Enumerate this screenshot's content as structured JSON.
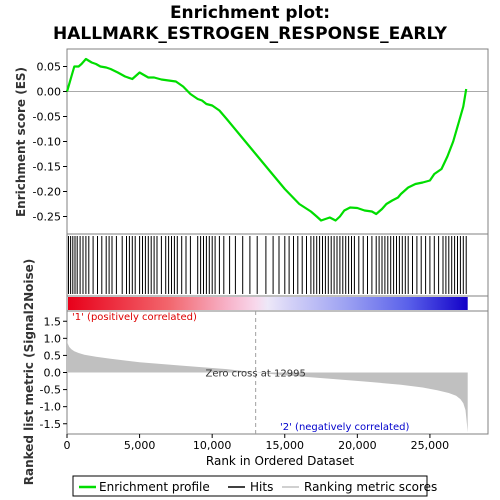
{
  "chart_data": {
    "type": "line",
    "title_line1": "Enrichment plot:",
    "title_line2": "HALLMARK_ESTROGEN_RESPONSE_EARLY",
    "xlabel": "Rank in Ordered Dataset",
    "ylabel_top": "Enrichment score (ES)",
    "ylabel_bottom": "Ranked list metric (Signal2Noise)",
    "xlim": [
      0,
      29000
    ],
    "x_ticks": [
      0,
      5000,
      10000,
      15000,
      20000,
      25000
    ],
    "x_tick_labels": [
      "0",
      "5,000",
      "10,000",
      "15,000",
      "20,000",
      "25,000"
    ],
    "es_ylim": [
      -0.285,
      0.085
    ],
    "es_ticks": [
      0.05,
      0.0,
      -0.05,
      -0.1,
      -0.15,
      -0.2,
      -0.25
    ],
    "es_tick_labels": [
      "0.05",
      "0.00",
      "-0.05",
      "-0.10",
      "-0.15",
      "-0.20",
      "-0.25"
    ],
    "metric_ylim": [
      -1.8,
      1.8
    ],
    "metric_ticks": [
      1.5,
      1.0,
      0.5,
      0.0,
      -0.5,
      -1.0,
      -1.5
    ],
    "metric_tick_labels": [
      "1.5",
      "1.0",
      "0.5",
      "0.0",
      "-0.5",
      "-1.0",
      "-1.5"
    ],
    "n_genes": 27600,
    "zero_cross": 12995,
    "zero_cross_label": "Zero cross at 12995",
    "pos_label": "'1' (positively correlated)",
    "neg_label": "'2' (negatively correlated)",
    "enrichment_profile": {
      "name": "Enrichment profile",
      "color": "#00dd00",
      "x": [
        0,
        100,
        300,
        500,
        800,
        1000,
        1300,
        1700,
        2000,
        2300,
        2700,
        3000,
        3500,
        4000,
        4500,
        5000,
        5300,
        5600,
        6000,
        6500,
        7000,
        7500,
        8000,
        8500,
        9000,
        9300,
        9600,
        10000,
        10500,
        11000,
        12000,
        13000,
        14000,
        15000,
        16000,
        16800,
        17200,
        17500,
        17800,
        18100,
        18500,
        18800,
        19100,
        19500,
        20000,
        20500,
        21000,
        21300,
        21700,
        22000,
        22400,
        22800,
        23000,
        23500,
        24000,
        24500,
        25000,
        25300,
        25800,
        26200,
        26600,
        27000,
        27300,
        27500
      ],
      "y": [
        0.0,
        0.01,
        0.03,
        0.05,
        0.05,
        0.055,
        0.065,
        0.058,
        0.055,
        0.05,
        0.048,
        0.045,
        0.038,
        0.03,
        0.025,
        0.038,
        0.033,
        0.028,
        0.028,
        0.024,
        0.022,
        0.02,
        0.01,
        -0.005,
        -0.015,
        -0.018,
        -0.025,
        -0.028,
        -0.038,
        -0.055,
        -0.09,
        -0.125,
        -0.16,
        -0.195,
        -0.225,
        -0.24,
        -0.25,
        -0.258,
        -0.255,
        -0.252,
        -0.258,
        -0.25,
        -0.238,
        -0.232,
        -0.233,
        -0.238,
        -0.24,
        -0.245,
        -0.235,
        -0.225,
        -0.218,
        -0.212,
        -0.205,
        -0.192,
        -0.185,
        -0.182,
        -0.178,
        -0.165,
        -0.155,
        -0.13,
        -0.1,
        -0.06,
        -0.03,
        0.005
      ]
    },
    "hits": {
      "name": "Hits",
      "color": "#000000",
      "positions": [
        100,
        250,
        400,
        550,
        700,
        900,
        1100,
        1300,
        1500,
        1800,
        2100,
        2400,
        2700,
        2900,
        3100,
        3400,
        3800,
        4100,
        4300,
        4500,
        4700,
        5000,
        5200,
        5400,
        5600,
        5800,
        6000,
        6200,
        6500,
        6800,
        7000,
        7200,
        7400,
        7600,
        7900,
        8200,
        8500,
        9000,
        9200,
        9400,
        9600,
        9800,
        10000,
        10200,
        10500,
        10800,
        11200,
        11600,
        12100,
        12600,
        13100,
        13700,
        14200,
        14600,
        15000,
        15300,
        15600,
        15900,
        16200,
        16500,
        16800,
        17000,
        17200,
        17400,
        17600,
        17800,
        18000,
        18200,
        18400,
        18600,
        18800,
        19000,
        19200,
        19400,
        19600,
        19800,
        20100,
        20400,
        20700,
        21000,
        21300,
        21500,
        21700,
        21900,
        22100,
        22300,
        22500,
        22700,
        22900,
        23100,
        23300,
        23500,
        23800,
        24100,
        24400,
        24700,
        25000,
        25300,
        25600,
        25900,
        26100,
        26300,
        26500,
        26700,
        26900,
        27100,
        27300,
        27500
      ]
    },
    "ranking_metric": {
      "name": "Ranking metric scores",
      "color": "#c0c0c0",
      "x": [
        0,
        50,
        150,
        300,
        500,
        800,
        1200,
        2000,
        3000,
        5000,
        8000,
        11000,
        12995,
        15000,
        18000,
        21000,
        23000,
        24500,
        25500,
        26300,
        26800,
        27100,
        27300,
        27450,
        27550,
        27600
      ],
      "y": [
        1.0,
        0.85,
        0.75,
        0.68,
        0.62,
        0.57,
        0.52,
        0.46,
        0.4,
        0.3,
        0.2,
        0.1,
        0.0,
        -0.08,
        -0.18,
        -0.28,
        -0.36,
        -0.44,
        -0.52,
        -0.6,
        -0.68,
        -0.78,
        -0.9,
        -1.1,
        -1.5,
        -1.75
      ]
    },
    "legend_position": "bottom"
  }
}
